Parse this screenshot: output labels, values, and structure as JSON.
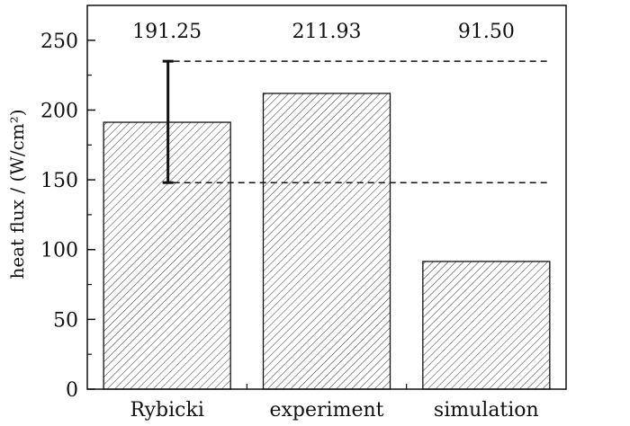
{
  "chart_data": {
    "type": "bar",
    "categories": [
      "Rybicki",
      "experiment",
      "simulation"
    ],
    "values": [
      191.25,
      211.93,
      91.5
    ],
    "data_labels": [
      "191.25",
      "211.93",
      "91.50"
    ],
    "ylabel": "heat flux / (W/cm²)",
    "ylim": [
      0,
      275
    ],
    "yticks": [
      0,
      50,
      100,
      150,
      200,
      250
    ],
    "yticks_labels": [
      "0",
      "50",
      "100",
      "150",
      "200",
      "250"
    ],
    "minor_y_step": 25,
    "error_bar": {
      "category": "Rybicki",
      "low": 148,
      "high": 235
    },
    "reference_lines": [
      235,
      148
    ],
    "bar_fill": "hatched",
    "grid": false
  }
}
